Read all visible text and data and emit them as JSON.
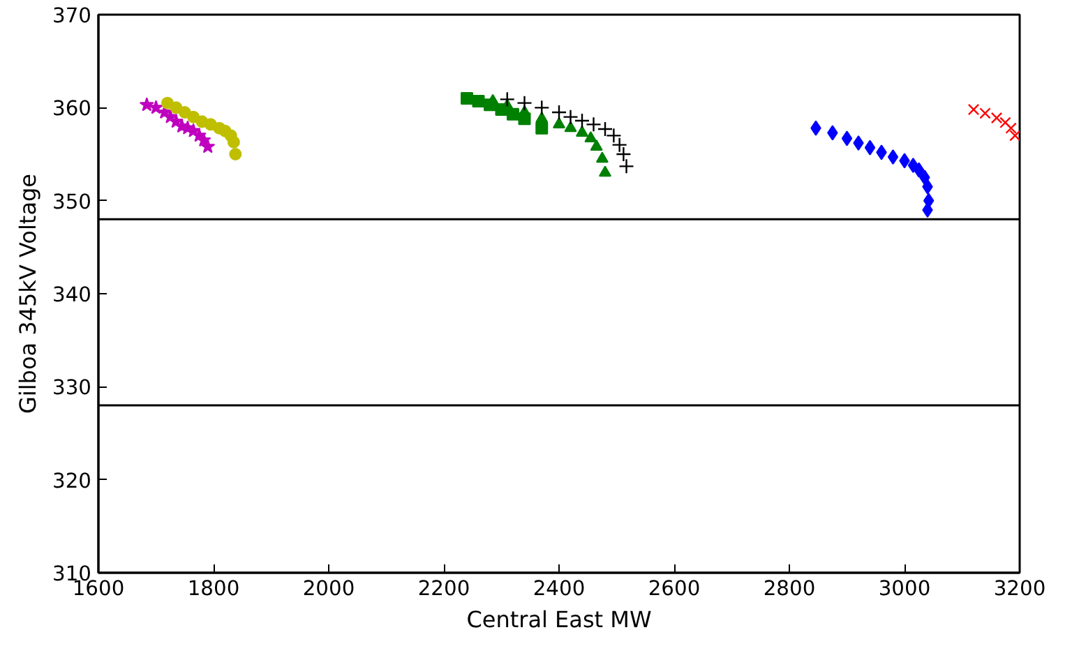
{
  "chart_data": {
    "type": "scatter",
    "xlabel": "Central East MW",
    "ylabel": "Gilboa 345kV Voltage",
    "xlim": [
      1600,
      3200
    ],
    "ylim": [
      310,
      370
    ],
    "xticks": [
      1600,
      1800,
      2000,
      2200,
      2400,
      2600,
      2800,
      3000,
      3200
    ],
    "yticks": [
      310,
      320,
      330,
      340,
      350,
      360,
      370
    ],
    "grid": false,
    "series": [
      {
        "color": "#bf00bf",
        "marker": "star",
        "x": [
          1684,
          1700,
          1715,
          1725,
          1735,
          1745,
          1755,
          1765,
          1775,
          1783,
          1790
        ],
        "values": [
          360.3,
          360,
          359.5,
          359,
          358.5,
          358,
          357.8,
          357.5,
          357,
          356.5,
          355.8
        ]
      },
      {
        "color": "#bfbf00",
        "marker": "circle",
        "x": [
          1720,
          1735,
          1750,
          1765,
          1780,
          1795,
          1810,
          1820,
          1830,
          1835,
          1838
        ],
        "values": [
          360.5,
          360,
          359.5,
          359,
          358.5,
          358.2,
          357.8,
          357.5,
          357,
          356.3,
          355
        ]
      },
      {
        "color": "#008000",
        "marker": "square",
        "x": [
          2240,
          2260,
          2280,
          2300,
          2320,
          2340,
          2370
        ],
        "values": [
          361,
          360.7,
          360.3,
          359.8,
          359.3,
          358.8,
          357.8
        ]
      },
      {
        "color": "#008000",
        "marker": "triangle",
        "x": [
          2285,
          2310,
          2340,
          2370,
          2400,
          2420,
          2440,
          2455,
          2465,
          2475,
          2480
        ],
        "values": [
          360.7,
          360.2,
          359.5,
          358.8,
          358.2,
          357.8,
          357.3,
          356.7,
          355.8,
          354.5,
          353
        ]
      },
      {
        "color": "#000000",
        "marker": "cross",
        "x": [
          2310,
          2340,
          2370,
          2400,
          2420,
          2440,
          2460,
          2480,
          2495,
          2505,
          2512,
          2517
        ],
        "values": [
          360.9,
          360.5,
          360,
          359.5,
          359,
          358.6,
          358.2,
          357.7,
          357,
          356,
          355,
          353.7
        ]
      },
      {
        "color": "#0000ff",
        "marker": "diamond",
        "x": [
          2846,
          2875,
          2900,
          2920,
          2940,
          2960,
          2980,
          3000,
          3015,
          3025,
          3035,
          3040,
          3042,
          3040
        ],
        "values": [
          357.8,
          357.3,
          356.7,
          356.2,
          355.7,
          355.2,
          354.7,
          354.3,
          353.8,
          353.3,
          352.5,
          351.5,
          350,
          349
        ]
      },
      {
        "color": "#ff0000",
        "marker": "x",
        "x": [
          3120,
          3140,
          3160,
          3175,
          3185,
          3192
        ],
        "values": [
          359.8,
          359.4,
          358.9,
          358.4,
          357.8,
          357
        ]
      }
    ],
    "ref_lines": [
      {
        "axis": "y",
        "value": 348,
        "color": "#000000"
      },
      {
        "axis": "y",
        "value": 328,
        "color": "#000000"
      }
    ]
  }
}
